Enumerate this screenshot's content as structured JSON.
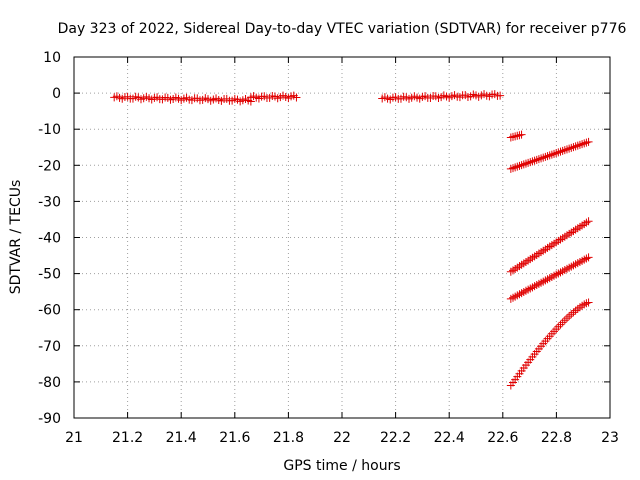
{
  "chart_data": {
    "type": "scatter",
    "title": "Day 323 of 2022, Sidereal Day-to-day VTEC variation (SDTVAR) for receiver p776",
    "xlabel": "GPS time / hours",
    "ylabel": "SDTVAR / TECUs",
    "xlim": [
      21,
      23
    ],
    "ylim": [
      -90,
      10
    ],
    "xticks": [
      21,
      21.2,
      21.4,
      21.6,
      21.8,
      22,
      22.2,
      22.4,
      22.6,
      22.8,
      23
    ],
    "yticks": [
      10,
      0,
      -10,
      -20,
      -30,
      -40,
      -50,
      -60,
      -70,
      -80,
      -90
    ],
    "grid": true,
    "marker": "plus",
    "color": "#e00000",
    "segments": [
      {
        "x_start": 21.15,
        "x_end": 21.66,
        "y_start": -1.2,
        "y_end": -2.0,
        "step": 0.01
      },
      {
        "x_start": 21.66,
        "x_end": 21.83,
        "y_start": -1.2,
        "y_end": -1.0,
        "step": 0.01
      },
      {
        "x_start": 22.15,
        "x_end": 22.59,
        "y_start": -1.5,
        "y_end": -0.5,
        "step": 0.01
      },
      {
        "x_start": 22.63,
        "x_end": 22.67,
        "y_start": -12.3,
        "y_end": -11.5,
        "step": 0.008
      },
      {
        "x_start": 22.63,
        "x_end": 22.92,
        "y_start": -21.0,
        "y_end": -13.5,
        "step": 0.008
      },
      {
        "x_start": 22.63,
        "x_end": 22.92,
        "y_start": -49.5,
        "y_end": -35.5,
        "step": 0.008
      },
      {
        "x_start": 22.63,
        "x_end": 22.92,
        "y_start": -57.0,
        "y_end": -45.5,
        "step": 0.008
      },
      {
        "x_start": 22.63,
        "x_end": 22.92,
        "y_start": -81.0,
        "y_end": -58.0,
        "step": 0.008,
        "curve": "concave"
      }
    ]
  }
}
